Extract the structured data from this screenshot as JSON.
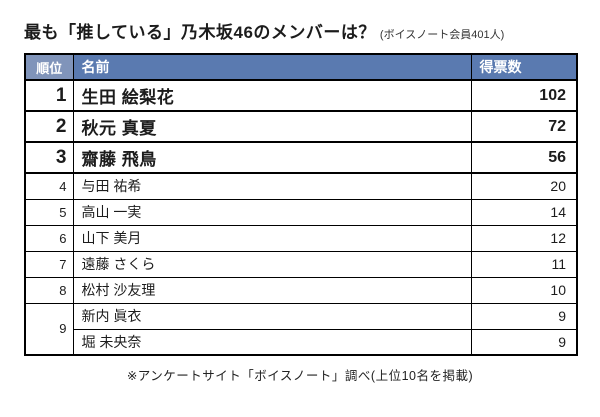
{
  "title": {
    "text": "最も「推している」乃木坂46のメンバーは？",
    "note": "(ボイスノート会員401人)"
  },
  "table": {
    "headers": {
      "rank": "順位",
      "name": "名前",
      "votes": "得票数"
    },
    "rows": [
      {
        "rank": "1",
        "name": "生田 絵梨花",
        "votes": "102"
      },
      {
        "rank": "2",
        "name": "秋元 真夏",
        "votes": "72"
      },
      {
        "rank": "3",
        "name": "齋藤 飛鳥",
        "votes": "56"
      },
      {
        "rank": "4",
        "name": "与田 祐希",
        "votes": "20"
      },
      {
        "rank": "5",
        "name": "高山 一実",
        "votes": "14"
      },
      {
        "rank": "6",
        "name": "山下 美月",
        "votes": "12"
      },
      {
        "rank": "7",
        "name": "遠藤 さくら",
        "votes": "11"
      },
      {
        "rank": "8",
        "name": "松村 沙友理",
        "votes": "10"
      },
      {
        "rank": "9",
        "name": "新内 眞衣",
        "votes": "9"
      },
      {
        "rank": "9",
        "name": "堀 未央奈",
        "votes": "9"
      }
    ]
  },
  "footer": "※アンケートサイト「ボイスノート」調べ(上位10名を掲載)",
  "colors": {
    "header_bg": "#5a7ab0",
    "rank_header_bg": "#8094ba",
    "header_text": "#ffffff",
    "border": "#000000",
    "text": "#1c1c1c"
  },
  "chart_data": {
    "type": "table",
    "title": "最も「推している」乃木坂46のメンバーは？",
    "subtitle": "(ボイスノート会員401人)",
    "columns": [
      "順位",
      "名前",
      "得票数"
    ],
    "ranks": [
      1,
      2,
      3,
      4,
      5,
      6,
      7,
      8,
      9,
      9
    ],
    "categories": [
      "生田 絵梨花",
      "秋元 真夏",
      "齋藤 飛鳥",
      "与田 祐希",
      "高山 一実",
      "山下 美月",
      "遠藤 さくら",
      "松村 沙友理",
      "新内 眞衣",
      "堀 未央奈"
    ],
    "values": [
      102,
      72,
      56,
      20,
      14,
      12,
      11,
      10,
      9,
      9
    ],
    "footnote": "※アンケートサイト「ボイスノート」調べ(上位10名を掲載)",
    "legend": false,
    "grid": true
  }
}
